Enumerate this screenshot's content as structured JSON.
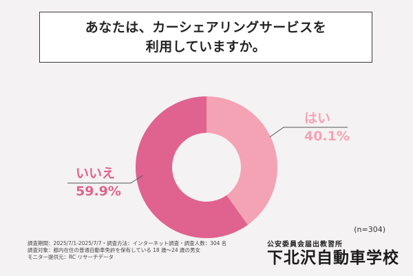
{
  "title": {
    "line1": "あなたは、カーシェアリングサービスを",
    "line2": "利用していますか。"
  },
  "colors": {
    "yes": "#f4a3b4",
    "no": "#e0628f",
    "label_no": "#e0628f",
    "label_yes": "#f4a3b4"
  },
  "chart_data": {
    "type": "pie",
    "categories": [
      "はい",
      "いいえ"
    ],
    "values": [
      40.1,
      59.9
    ],
    "data_labels": [
      "40.1%",
      "59.9%"
    ],
    "title": "あなたは、カーシェアリングサービスを利用していますか。",
    "donut": true
  },
  "sample_note": "(n=304)",
  "footnotes": [
    "調査期間：2025/7/1-2025/7/7・調査方法：インターネット調査・調査人数：304 名",
    "調査対象：都内在住の普通自動車免許を保有している 18 歳～24 歳の男女",
    "モニター提供元：RC リサーチデータ"
  ],
  "logo": {
    "sub": "公安委員会届出教習所",
    "main": "下北沢自動車学校"
  }
}
